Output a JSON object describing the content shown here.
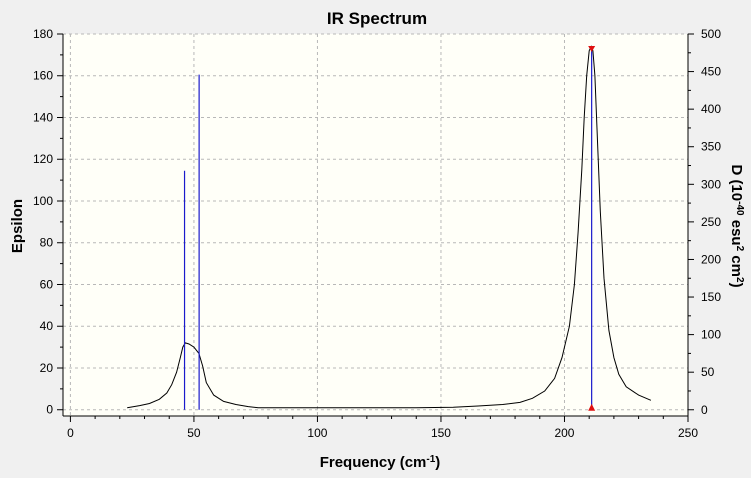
{
  "chart_data": {
    "type": "line",
    "title": "IR Spectrum",
    "xlabel": {
      "base": "Frequency (cm",
      "sup": "-1",
      "end": ")"
    },
    "ylabel": "Epsilon",
    "y2label": {
      "p1": "D (10",
      "sup1": "-40",
      "p2": " esu",
      "sup2": "2",
      "p3": " cm",
      "sup3": "2",
      "p4": ")"
    },
    "xlim": [
      -3,
      250
    ],
    "ylim": [
      -3,
      180
    ],
    "y2lim": [
      -8.3,
      500
    ],
    "x_ticks": [
      0,
      50,
      100,
      150,
      200,
      250
    ],
    "y_ticks": [
      0,
      20,
      40,
      60,
      80,
      100,
      120,
      140,
      160,
      180
    ],
    "y2_ticks": [
      0,
      50,
      100,
      150,
      200,
      250,
      300,
      350,
      400,
      450,
      500
    ],
    "grid": true,
    "colors": {
      "plot_bg": "#fffff8",
      "window_bg": "#f0f0f0",
      "curve": "#000000",
      "stick": "#1a1acc",
      "marker": "#e01010",
      "grid": "#b8b8b8"
    },
    "spectrum": {
      "name": "Epsilon",
      "x": [
        23,
        28,
        32,
        36,
        39,
        41,
        43,
        44.5,
        45.5,
        46.5,
        48,
        50,
        52,
        53.5,
        55,
        58,
        62,
        67,
        72,
        76,
        85,
        100,
        120,
        140,
        155,
        165,
        175,
        182,
        187,
        192,
        196,
        199,
        202,
        204,
        205.5,
        207,
        208,
        209,
        210,
        210.8,
        211.5,
        212.3,
        213.5,
        214.5,
        216,
        218,
        220,
        222,
        225,
        230,
        235
      ],
      "y": [
        1,
        2,
        3,
        5,
        8,
        12,
        18,
        25,
        30,
        32,
        31.5,
        30,
        27,
        21,
        13,
        7,
        4,
        2.5,
        1.5,
        1,
        1,
        1,
        1,
        1,
        1.2,
        1.8,
        2.5,
        3.5,
        5.5,
        9,
        15,
        25,
        40,
        60,
        85,
        115,
        140,
        160,
        172,
        174,
        172,
        160,
        125,
        95,
        63,
        38,
        25,
        17,
        11,
        7,
        4.5
      ]
    },
    "sticks": [
      {
        "x": 46.2,
        "d": 318
      },
      {
        "x": 52.1,
        "d": 446
      },
      {
        "x": 211,
        "d": 480
      }
    ]
  }
}
